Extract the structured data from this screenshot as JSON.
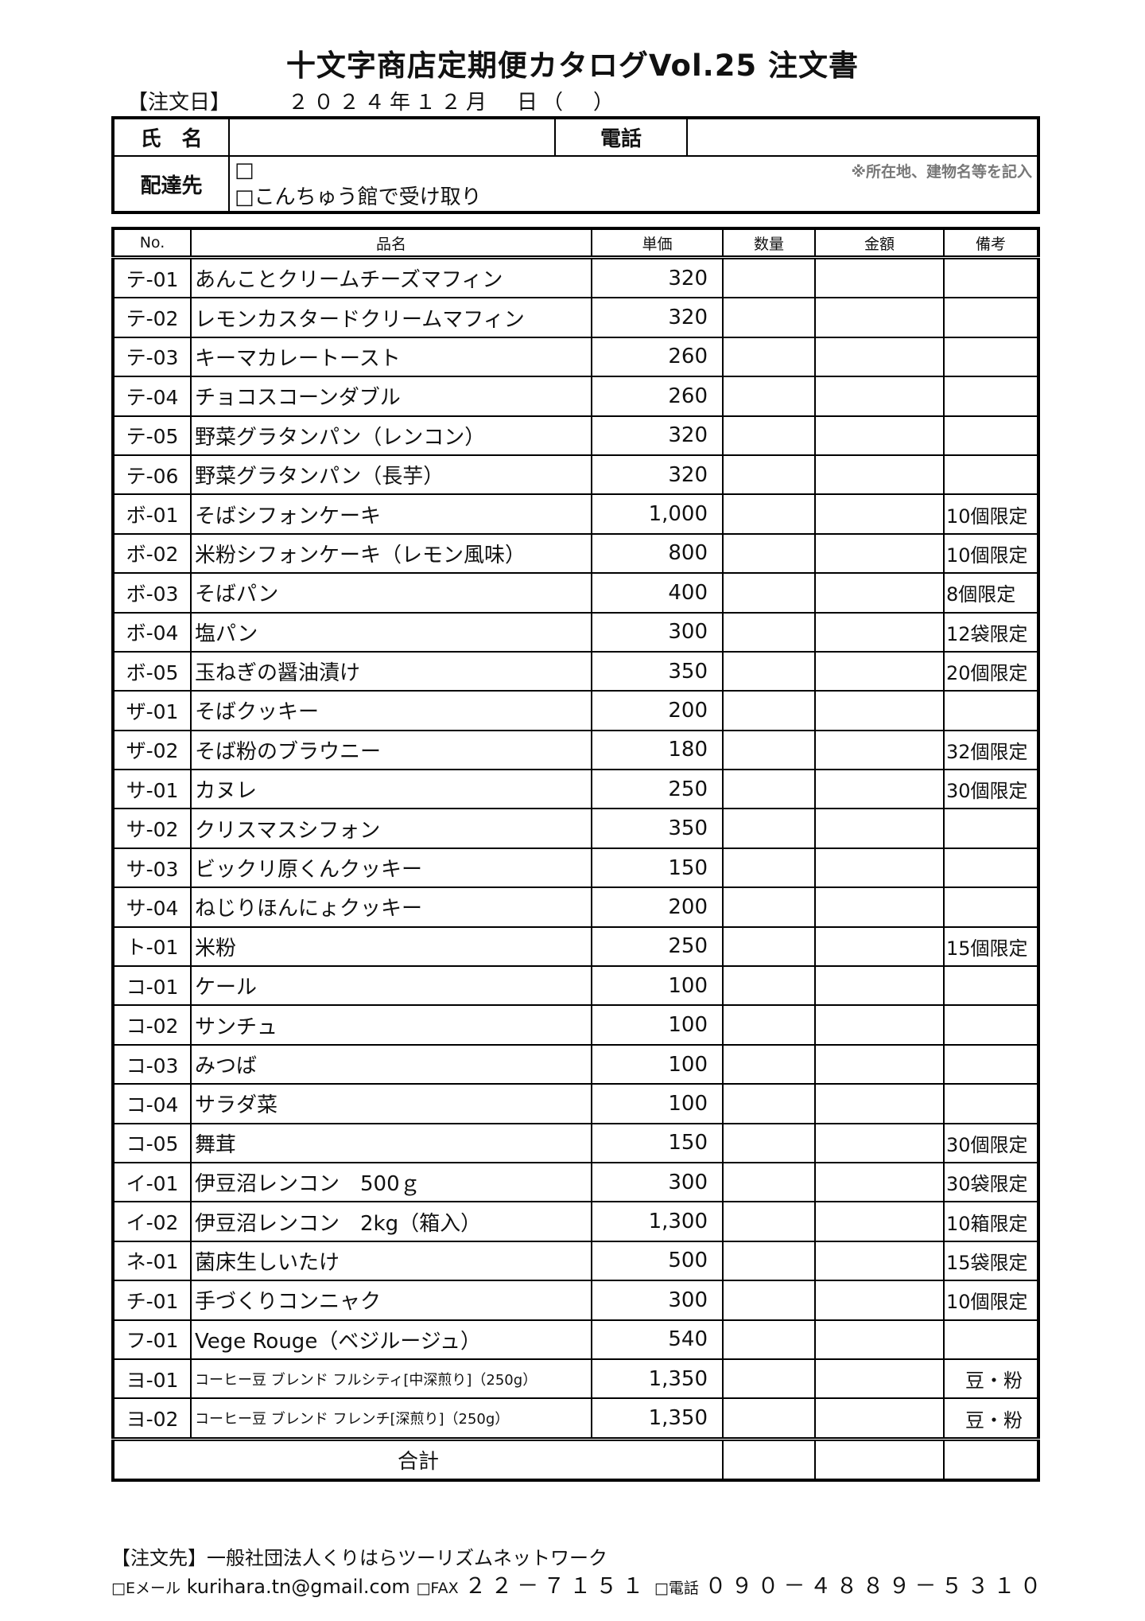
{
  "title": "十文字商店定期便カタログVol.25 注文書",
  "order_date": {
    "label": "【注文日】",
    "value": "２０２４年１２月　日（　）"
  },
  "info": {
    "name_label": "氏　名",
    "phone_label": "電話",
    "delivery_label": "配達先",
    "delivery_option1": "□",
    "delivery_note": "※所在地、建物名等を記入",
    "delivery_option2": "□こんちゅう館で受け取り"
  },
  "columns": [
    "No.",
    "品名",
    "単価",
    "数量",
    "金額",
    "備考"
  ],
  "items": [
    {
      "no": "テ-01",
      "name": "あんことクリームチーズマフィン",
      "price": "320",
      "note": ""
    },
    {
      "no": "テ-02",
      "name": "レモンカスタードクリームマフィン",
      "price": "320",
      "note": ""
    },
    {
      "no": "テ-03",
      "name": "キーマカレートースト",
      "price": "260",
      "note": ""
    },
    {
      "no": "テ-04",
      "name": "チョコスコーンダブル",
      "price": "260",
      "note": ""
    },
    {
      "no": "テ-05",
      "name": "野菜グラタンパン（レンコン）",
      "price": "320",
      "note": ""
    },
    {
      "no": "テ-06",
      "name": "野菜グラタンパン（長芋）",
      "price": "320",
      "note": ""
    },
    {
      "no": "ボ-01",
      "name": "そばシフォンケーキ",
      "price": "1,000",
      "note": "10個限定"
    },
    {
      "no": "ボ-02",
      "name": "米粉シフォンケーキ（レモン風味）",
      "price": "800",
      "note": "10個限定"
    },
    {
      "no": "ボ-03",
      "name": "そばパン",
      "price": "400",
      "note": "8個限定"
    },
    {
      "no": "ボ-04",
      "name": "塩パン",
      "price": "300",
      "note": "12袋限定"
    },
    {
      "no": "ボ-05",
      "name": "玉ねぎの醤油漬け",
      "price": "350",
      "note": "20個限定"
    },
    {
      "no": "ザ-01",
      "name": "そばクッキー",
      "price": "200",
      "note": ""
    },
    {
      "no": "ザ-02",
      "name": "そば粉のブラウニー",
      "price": "180",
      "note": "32個限定"
    },
    {
      "no": "サ-01",
      "name": "カヌレ",
      "price": "250",
      "note": "30個限定"
    },
    {
      "no": "サ-02",
      "name": "クリスマスシフォン",
      "price": "350",
      "note": ""
    },
    {
      "no": "サ-03",
      "name": "ビックリ原くんクッキー",
      "price": "150",
      "note": ""
    },
    {
      "no": "サ-04",
      "name": "ねじりほんにょクッキー",
      "price": "200",
      "note": ""
    },
    {
      "no": "ト-01",
      "name": "米粉",
      "price": "250",
      "note": "15個限定"
    },
    {
      "no": "コ-01",
      "name": "ケール",
      "price": "100",
      "note": ""
    },
    {
      "no": "コ-02",
      "name": "サンチュ",
      "price": "100",
      "note": ""
    },
    {
      "no": "コ-03",
      "name": "みつば",
      "price": "100",
      "note": ""
    },
    {
      "no": "コ-04",
      "name": "サラダ菜",
      "price": "100",
      "note": ""
    },
    {
      "no": "コ-05",
      "name": "舞茸",
      "price": "150",
      "note": "30個限定"
    },
    {
      "no": "イ-01",
      "name": "伊豆沼レンコン　500ｇ",
      "price": "300",
      "note": "30袋限定"
    },
    {
      "no": "イ-02",
      "name": "伊豆沼レンコン　2kg（箱入）",
      "price": "1,300",
      "note": "10箱限定"
    },
    {
      "no": "ネ-01",
      "name": "菌床生しいたけ",
      "price": "500",
      "note": "15袋限定"
    },
    {
      "no": "チ-01",
      "name": "手づくりコンニャク",
      "price": "300",
      "note": "10個限定"
    },
    {
      "no": "フ-01",
      "name": "Vege Rouge（ベジルージュ）",
      "price": "540",
      "note": ""
    },
    {
      "no": "ヨ-01",
      "name": "コーヒー豆 ブレンド フルシティ[中深煎り]（250g）",
      "price": "1,350",
      "note": "　豆・粉",
      "small": true
    },
    {
      "no": "ヨ-02",
      "name": "コーヒー豆 ブレンド フレンチ[深煎り]（250g）",
      "price": "1,350",
      "note": "　豆・粉",
      "small": true
    }
  ],
  "total_label": "合計",
  "footer": {
    "line1": "【注文先】一般社団法人くりはらツーリズムネットワーク",
    "email_label": "□Eメール",
    "email": "kurihara.tn@gmail.com",
    "fax_label": "□FAX",
    "fax": "２２－７１５１",
    "phone_label": "□電話",
    "phone": "０９０－４８８９－５３１０"
  }
}
